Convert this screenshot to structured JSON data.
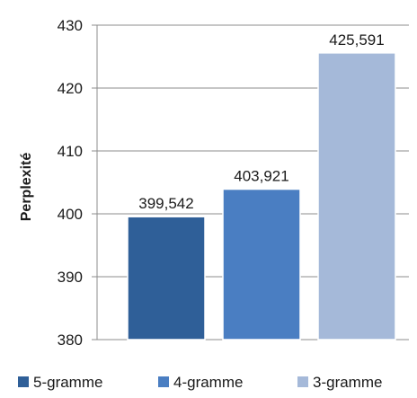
{
  "chart_data": {
    "type": "bar",
    "categories": [
      "5-gramme",
      "4-gramme",
      "3-gramme"
    ],
    "values": [
      399.542,
      403.921,
      425.591
    ],
    "data_labels": [
      "399,542",
      "403,921",
      "425,591"
    ],
    "ylabel": "Perplexité",
    "ylim": [
      380,
      430
    ],
    "yticks": [
      "380",
      "390",
      "400",
      "410",
      "420",
      "430"
    ],
    "grid": true,
    "legend_position": "bottom",
    "colors": [
      "#2f5f98",
      "#4a7ec2",
      "#a5b9d9"
    ]
  }
}
